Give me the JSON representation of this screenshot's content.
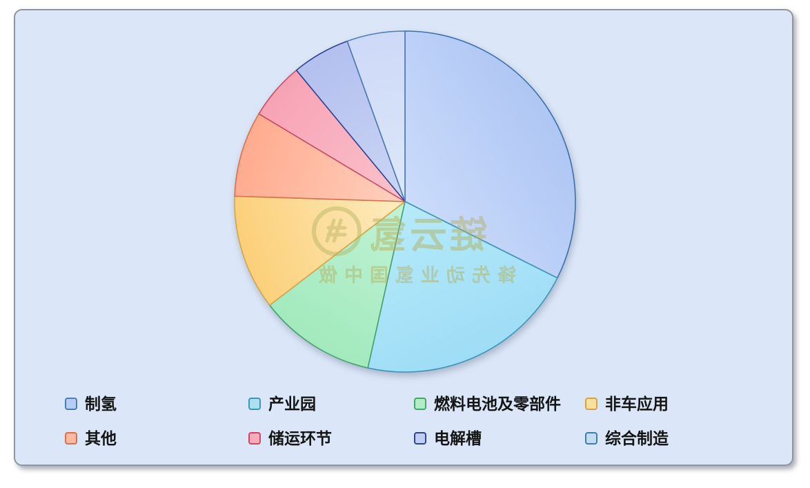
{
  "card": {
    "background": "#dbe7f8",
    "border_color": "#8f959c",
    "outer_background": "#ffffff"
  },
  "chart_data": {
    "type": "pie",
    "title": "",
    "categories": [
      "制氢",
      "产业园",
      "燃料电池及零部件",
      "非车应用",
      "其他",
      "储运环节",
      "电解槽",
      "综合制造"
    ],
    "values": [
      32.4,
      21.1,
      11.1,
      10.9,
      8.1,
      5.4,
      5.5,
      5.5
    ],
    "value_unit": "percent (estimated from slice angles, no labels shown)",
    "start_angle_deg": 0,
    "direction": "clockwise",
    "legend_position": "bottom",
    "colors_outer": [
      "#afc6f4",
      "#9eddf6",
      "#a2e9bd",
      "#fccf78",
      "#ffab8e",
      "#f7a2b5",
      "#b3bfee",
      "#cdd9f7"
    ],
    "colors_inner": [
      "#cbdcfb",
      "#b6eafa",
      "#c2f3d6",
      "#fdecc0",
      "#ffd0bf",
      "#fac3cc",
      "#ccd6f6",
      "#dde8fa"
    ],
    "stroke_colors": [
      "#3c6fae",
      "#3e95ba",
      "#43a26b",
      "#d8a441",
      "#d96f4d",
      "#c94a63",
      "#2e4291",
      "#4a7ab8"
    ]
  },
  "legend": {
    "items": [
      {
        "label": "制氢",
        "fill": "#b7cdf1",
        "border": "#4a7ab8"
      },
      {
        "label": "产业园",
        "fill": "#abe0ef",
        "border": "#3e95ba"
      },
      {
        "label": "燃料电池及零部件",
        "fill": "#b2edc5",
        "border": "#3fa868"
      },
      {
        "label": "非车应用",
        "fill": "#fadf9d",
        "border": "#d8a441"
      },
      {
        "label": "其他",
        "fill": "#ffb9a2",
        "border": "#d96f4d"
      },
      {
        "label": "储运环节",
        "fill": "#f8abba",
        "border": "#d24560"
      },
      {
        "label": "电解槽",
        "fill": "#c2cdf3",
        "border": "#2e4291"
      },
      {
        "label": "综合制造",
        "fill": "#c2ddf1",
        "border": "#3f7cab"
      }
    ]
  },
  "watermark": {
    "title": "氢云链",
    "tagline": "做中国氢业动先锋",
    "color": "#b2b260"
  }
}
